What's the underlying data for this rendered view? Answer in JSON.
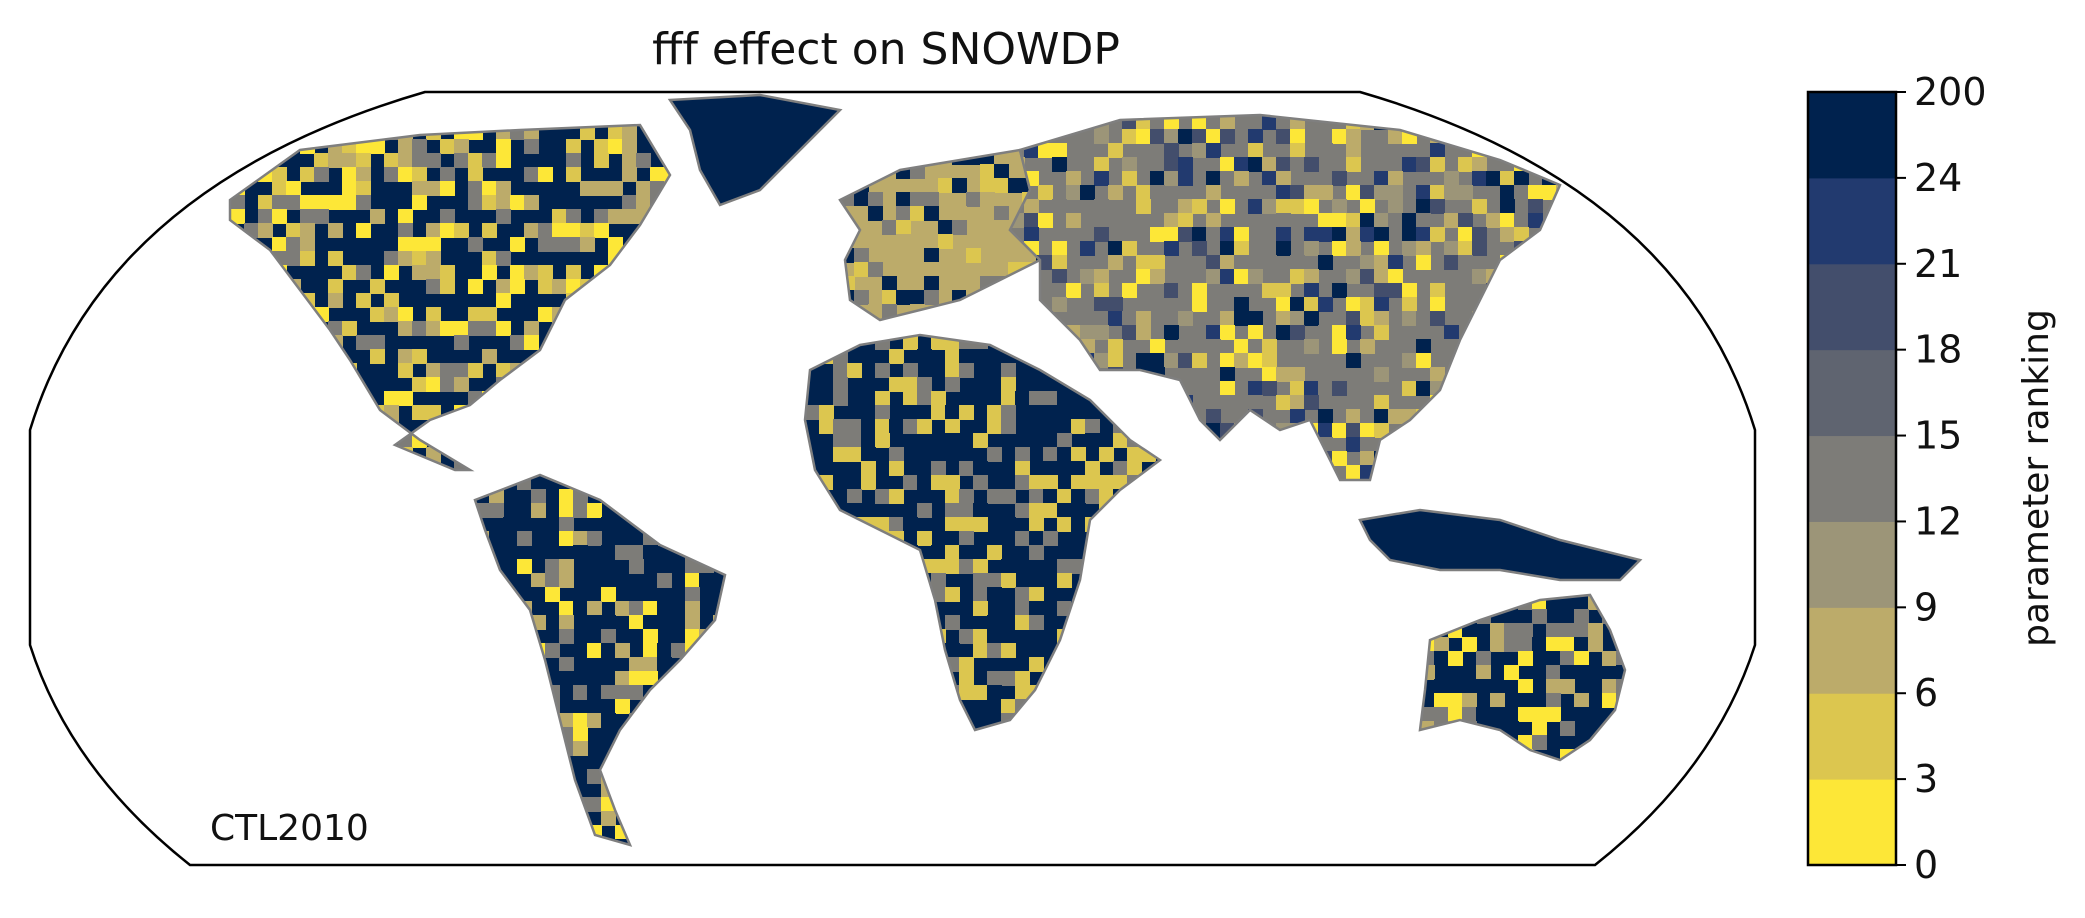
{
  "title": "fff effect on SNOWDP",
  "run_label": "CTL2010",
  "map": {
    "projection": "Robinson",
    "ocean_color": "#ffffff",
    "coastline_color": "#7f7f7f",
    "land_regions": [
      {
        "name": "North America",
        "dominant_class": 8
      },
      {
        "name": "Greenland",
        "dominant_class": 8
      },
      {
        "name": "South America",
        "dominant_class": 8
      },
      {
        "name": "Europe",
        "dominant_class": 2
      },
      {
        "name": "Asia",
        "dominant_class": 4
      },
      {
        "name": "Africa",
        "dominant_class": 8
      },
      {
        "name": "Australia",
        "dominant_class": 8
      },
      {
        "name": "Indonesia",
        "dominant_class": 8
      }
    ]
  },
  "colorbar": {
    "label": "parameter ranking",
    "tick_labels": [
      "0",
      "3",
      "6",
      "9",
      "12",
      "15",
      "18",
      "21",
      "24",
      "200"
    ],
    "boundaries": [
      0,
      3,
      6,
      9,
      12,
      15,
      18,
      21,
      24,
      200
    ],
    "colors": [
      "#fde737",
      "#dcc64f",
      "#bcab6a",
      "#9c9578",
      "#7d7c78",
      "#5f6470",
      "#434e6c",
      "#223a6f",
      "#00224e"
    ]
  }
}
